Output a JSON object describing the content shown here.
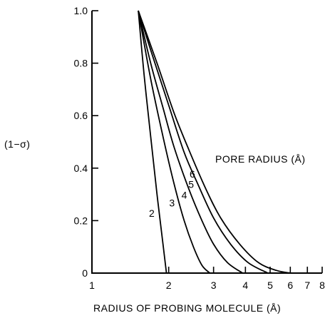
{
  "chart_data": {
    "type": "line",
    "xlabel": "RADIUS OF PROBING MOLECULE (Å)",
    "ylabel": "(1−σ)",
    "legend_title": "PORE RADIUS (Å)",
    "x_scale": "log",
    "xlim": [
      1,
      8
    ],
    "ylim": [
      0,
      1.0
    ],
    "x_ticks": [
      1,
      2,
      3,
      4,
      5,
      6,
      7,
      8
    ],
    "x_tick_labels": [
      "1",
      "2",
      "3",
      "4",
      "5",
      "6",
      "7",
      "8"
    ],
    "y_ticks": [
      0,
      0.2,
      0.4,
      0.6,
      0.8,
      1.0
    ],
    "y_tick_labels": [
      "0",
      "0.2",
      "0.4",
      "0.6",
      "0.8",
      "1.0"
    ],
    "grid": false,
    "series": [
      {
        "name": "2",
        "x": [
          1.52,
          1.6,
          1.7,
          1.8,
          1.9,
          1.96
        ],
        "y": [
          1.0,
          0.76,
          0.52,
          0.3,
          0.11,
          0.0
        ]
      },
      {
        "name": "3",
        "x": [
          1.52,
          1.7,
          1.9,
          2.1,
          2.3,
          2.5,
          2.7,
          2.9
        ],
        "y": [
          1.0,
          0.74,
          0.52,
          0.34,
          0.2,
          0.1,
          0.03,
          0.0
        ]
      },
      {
        "name": "4",
        "x": [
          1.52,
          1.7,
          1.9,
          2.1,
          2.4,
          2.7,
          3.0,
          3.4,
          3.9
        ],
        "y": [
          1.0,
          0.8,
          0.63,
          0.48,
          0.32,
          0.2,
          0.11,
          0.04,
          0.0
        ]
      },
      {
        "name": "5",
        "x": [
          1.52,
          1.7,
          2.0,
          2.3,
          2.6,
          3.0,
          3.5,
          4.1,
          4.9
        ],
        "y": [
          1.0,
          0.85,
          0.64,
          0.46,
          0.34,
          0.21,
          0.11,
          0.04,
          0.0
        ]
      },
      {
        "name": "6",
        "x": [
          1.52,
          1.8,
          2.1,
          2.4,
          2.8,
          3.2,
          3.8,
          4.5,
          5.3,
          6.0
        ],
        "y": [
          1.0,
          0.8,
          0.61,
          0.47,
          0.32,
          0.21,
          0.11,
          0.04,
          0.01,
          0.0
        ]
      }
    ]
  }
}
